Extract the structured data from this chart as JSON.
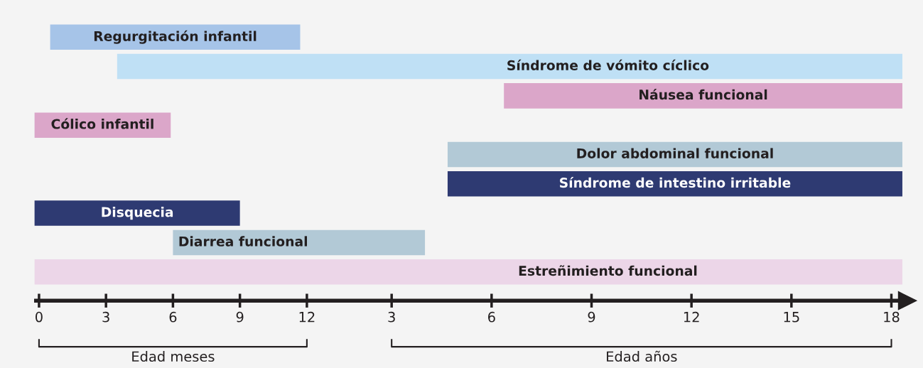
{
  "chart_data": [
    {
      "type": "bar",
      "orientation": "horizontal",
      "tick_labels": "x",
      "categories": [
        "Regurgitación infantil",
        null,
        null,
        "Cólico infantil",
        null,
        null,
        "Disquecia",
        "Diarrea funcional",
        null
      ],
      "base": [
        0.5,
        3.5,
        null,
        -0.2,
        null,
        null,
        -0.2,
        6.0,
        -0.2
      ],
      "values": [
        11.2,
        8.79,
        null,
        6.1,
        null,
        null,
        9.2,
        6.29,
        12.49
      ],
      "colors": [
        "#a6c4e8",
        "#bfe0f5",
        "#dba6c9",
        "#dba6c9",
        "#b2c9d6",
        "#2e3a72",
        "#2e3a72",
        "#b2c9d6",
        "#ecd6e8"
      ],
      "xlim": [
        -0.22,
        12.29
      ],
      "xticks": [
        0,
        3,
        6,
        9,
        12
      ],
      "annotations": [
        "Edad meses"
      ],
      "grid": false,
      "legend": false
    },
    {
      "type": "bar",
      "orientation": "horizontal",
      "tick_labels": "x",
      "categories": [
        null,
        "Síndrome de vómito cíclico",
        "Náusea funcional",
        null,
        "Dolor abdominal funcional",
        "Síndrome de intestino irritable",
        null,
        null,
        "Estreñimiento funcional"
      ],
      "base": [
        null,
        0.65,
        6.37,
        null,
        4.68,
        4.68,
        null,
        0.65,
        0.65
      ],
      "values": [
        null,
        17.68,
        11.96,
        null,
        13.65,
        13.65,
        null,
        3.35,
        17.68
      ],
      "colors": [
        "#a6c4e8",
        "#bfe0f5",
        "#dba6c9",
        "#dba6c9",
        "#b2c9d6",
        "#2e3a72",
        "#2e3a72",
        "#b2c9d6",
        "#ecd6e8"
      ],
      "xlim": [
        0.65,
        18.48
      ],
      "xticks": [
        3,
        6,
        9,
        12,
        15,
        18
      ],
      "annotations": [
        "Edad años"
      ],
      "grid": false,
      "legend": false
    }
  ]
}
